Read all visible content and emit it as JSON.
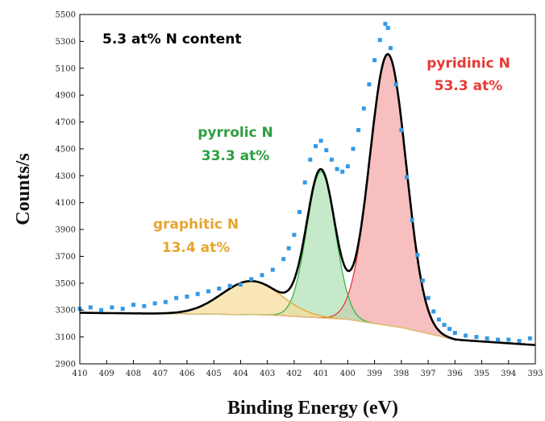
{
  "chart_data": {
    "type": "scatter",
    "title": "",
    "xlabel": "Binding Energy (eV)",
    "ylabel": "Counts/s",
    "xlim": [
      410,
      393
    ],
    "ylim": [
      2900,
      5500
    ],
    "x_reversed": true,
    "grid": false,
    "x_ticks": [
      410,
      409,
      408,
      407,
      406,
      405,
      404,
      403,
      402,
      401,
      400,
      399,
      398,
      397,
      396,
      395,
      394,
      393
    ],
    "y_ticks": [
      2900,
      3100,
      3300,
      3500,
      3700,
      3900,
      4100,
      4300,
      4500,
      4700,
      4900,
      5100,
      5300,
      5500
    ],
    "annotations": {
      "content": "5.3 at% N content",
      "pyridinic_name": "pyridinic N",
      "pyridinic_pct": "53.3 at%",
      "pyrrolic_name": "pyrrolic N",
      "pyrrolic_pct": "33.3 at%",
      "graphitic_name": "graphitic N",
      "graphitic_pct": "13.4 at%"
    },
    "colors": {
      "data_points": "#3399e6",
      "envelope": "#000000",
      "pyridinic": "#e53935",
      "pyridinic_fill": "#f4a6a6",
      "pyrrolic": "#3cb44b",
      "pyrrolic_fill": "#aee0b4",
      "graphitic": "#e6a52e",
      "graphitic_fill": "#f5dc9a",
      "background_fill": "#e6c27a"
    },
    "components": [
      {
        "center": 398.5,
        "height": 2020,
        "fwhm": 1.6
      },
      {
        "center": 401.0,
        "height": 1090,
        "fwhm": 1.25
      },
      {
        "center": 403.6,
        "height": 250,
        "fwhm": 2.6
      }
    ],
    "background": {
      "x": [
        410,
        403,
        400,
        398,
        396,
        393
      ],
      "y": [
        3280,
        3265,
        3230,
        3170,
        3080,
        3040
      ]
    },
    "measured": {
      "x": [
        410.0,
        409.6,
        409.2,
        408.8,
        408.4,
        408.0,
        407.6,
        407.2,
        406.8,
        406.4,
        406.0,
        405.6,
        405.2,
        404.8,
        404.4,
        404.0,
        403.6,
        403.2,
        402.8,
        402.4,
        402.2,
        402.0,
        401.8,
        401.6,
        401.4,
        401.2,
        401.0,
        400.8,
        400.6,
        400.4,
        400.2,
        400.0,
        399.8,
        399.6,
        399.4,
        399.2,
        399.0,
        398.8,
        398.6,
        398.5,
        398.4,
        398.2,
        398.0,
        397.8,
        397.6,
        397.4,
        397.2,
        397.0,
        396.8,
        396.6,
        396.4,
        396.2,
        396.0,
        395.6,
        395.2,
        394.8,
        394.4,
        394.0,
        393.6,
        393.2
      ],
      "y": [
        3310,
        3320,
        3300,
        3320,
        3310,
        3340,
        3330,
        3350,
        3360,
        3390,
        3400,
        3420,
        3440,
        3460,
        3480,
        3490,
        3530,
        3560,
        3600,
        3680,
        3760,
        3860,
        4030,
        4250,
        4420,
        4520,
        4560,
        4490,
        4420,
        4350,
        4330,
        4370,
        4500,
        4640,
        4800,
        4980,
        5160,
        5310,
        5430,
        5400,
        5250,
        4980,
        4640,
        4290,
        3970,
        3710,
        3520,
        3390,
        3290,
        3230,
        3190,
        3160,
        3130,
        3110,
        3100,
        3090,
        3080,
        3080,
        3070,
        3090
      ]
    }
  }
}
